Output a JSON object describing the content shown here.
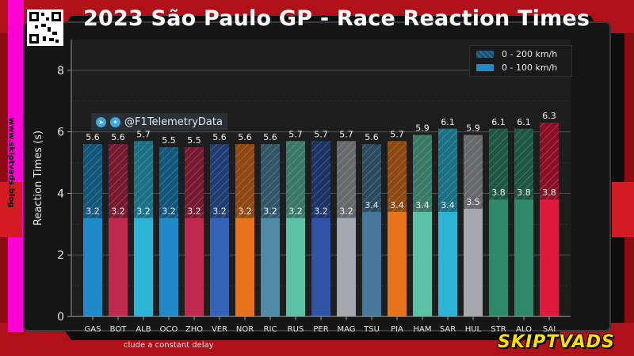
{
  "header": {
    "title": "2023 São Paulo GP - Race Reaction Times"
  },
  "watermark": {
    "site": "www.skiptvads.blog",
    "brand": "SKIPTVADS"
  },
  "social": {
    "handle": "@F1TelemetryData",
    "icons": [
      "telegram-icon",
      "twitter-icon"
    ]
  },
  "footnote": "clude a constant delay",
  "colors": {
    "frame_red": "#c8141e",
    "plot_bg": "#1e1e1e",
    "accent_pink": "#ff00d4",
    "brand_yellow": "#ffe100"
  },
  "chart_data": {
    "type": "bar",
    "title": "2023 São Paulo GP - Race Reaction Times",
    "xlabel": "",
    "ylabel": "Reaction Times (s)",
    "ylim": [
      0,
      9
    ],
    "yticks": [
      0,
      2,
      4,
      6,
      8
    ],
    "grid": true,
    "legend_position": "top-right",
    "categories": [
      "GAS",
      "BOT",
      "ALB",
      "OCO",
      "ZHO",
      "VER",
      "NOR",
      "RIC",
      "RUS",
      "PER",
      "MAG",
      "TSU",
      "PIA",
      "HAM",
      "SAR",
      "HUL",
      "STR",
      "ALO",
      "SAI"
    ],
    "series": [
      {
        "name": "0 - 100 km/h",
        "values": [
          3.2,
          3.2,
          3.2,
          3.2,
          3.2,
          3.2,
          3.2,
          3.2,
          3.2,
          3.2,
          3.2,
          3.4,
          3.4,
          3.4,
          3.4,
          3.5,
          3.8,
          3.8,
          3.8
        ]
      },
      {
        "name": "0 - 200 km/h",
        "values": [
          5.6,
          5.6,
          5.7,
          5.5,
          5.5,
          5.6,
          5.6,
          5.6,
          5.7,
          5.7,
          5.7,
          5.6,
          5.7,
          5.9,
          6.1,
          5.9,
          6.1,
          6.1,
          6.3
        ]
      }
    ],
    "bar_colors": [
      "#1f8ac7",
      "#c0284f",
      "#2ab5d6",
      "#1f8ac7",
      "#c0284f",
      "#3263b8",
      "#e5741c",
      "#4f8aa8",
      "#5cc2a6",
      "#2f54a6",
      "#a5a9ae",
      "#45789a",
      "#e5741c",
      "#5cc2a6",
      "#2ab5d6",
      "#a5a9ae",
      "#2e8a6b",
      "#2e8a6b",
      "#e0193a"
    ],
    "legend_colors": {
      "0 - 200 km/h": "#1d4d6e",
      "0 - 100 km/h": "#1f8ac7"
    }
  }
}
